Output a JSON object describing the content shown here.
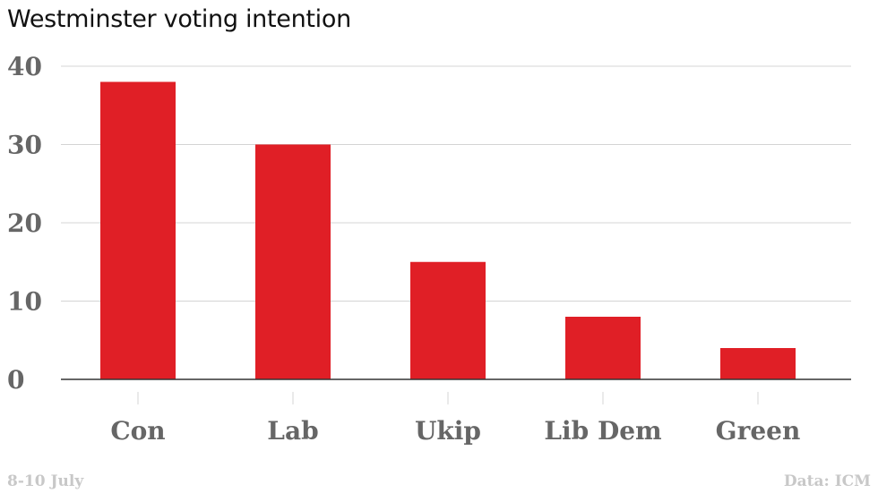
{
  "chart_data": {
    "type": "bar",
    "title": "Westminster voting intention",
    "categories": [
      "Con",
      "Lab",
      "Ukip",
      "Lib Dem",
      "Green"
    ],
    "values": [
      38,
      30,
      15,
      8,
      4
    ],
    "ylim": [
      0,
      40
    ],
    "yticks": [
      0,
      10,
      20,
      30,
      40
    ],
    "xlabel": "",
    "ylabel": "",
    "grid": true,
    "bar_color": "#e01f26"
  },
  "footer": {
    "left": "8-10 July",
    "right": "Data: ICM"
  }
}
